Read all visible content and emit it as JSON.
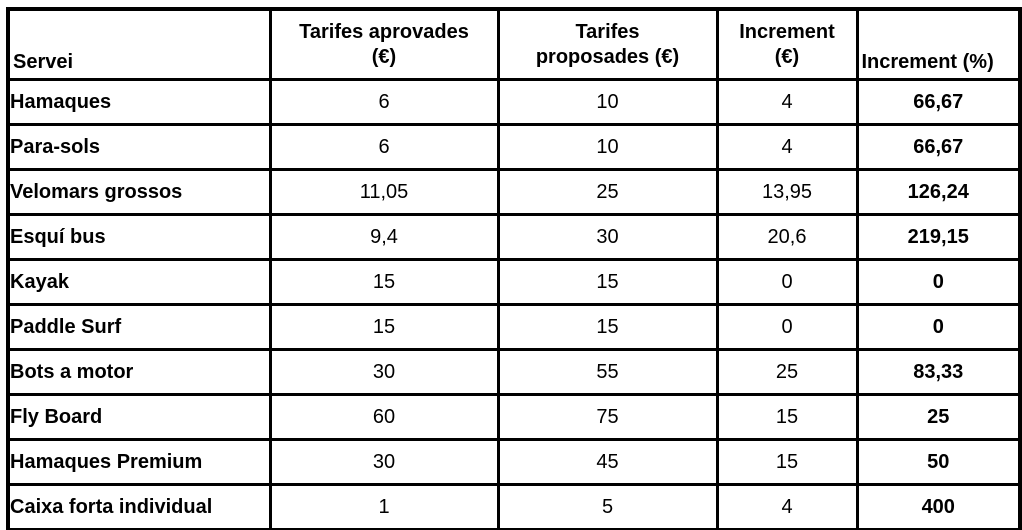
{
  "colors": {
    "value_blue": "#2626cf",
    "pct_red": "#e8141a",
    "border_black": "#000000",
    "background": "#ffffff"
  },
  "table": {
    "header": [
      {
        "line1": "Servei"
      },
      {
        "line1": "Tarifes aprovades",
        "line2": "(€)"
      },
      {
        "line1": "Tarifes",
        "line2": "proposades (€)"
      },
      {
        "line1": "Increment",
        "line2": "(€)"
      },
      {
        "line1": "Increment (%)"
      }
    ],
    "rows": [
      {
        "servei": "Hamaques",
        "aprovades": "6",
        "proposades": "10",
        "increment_eur": "4",
        "increment_pct": "66,67",
        "pct_highlight": true
      },
      {
        "servei": "Para-sols",
        "aprovades": "6",
        "proposades": "10",
        "increment_eur": "4",
        "increment_pct": "66,67",
        "pct_highlight": true
      },
      {
        "servei": "Velomars grossos",
        "aprovades": "11,05",
        "proposades": "25",
        "increment_eur": "13,95",
        "increment_pct": "126,24",
        "pct_highlight": true
      },
      {
        "servei": "Esquí bus",
        "aprovades": "9,4",
        "proposades": "30",
        "increment_eur": "20,6",
        "increment_pct": "219,15",
        "pct_highlight": true
      },
      {
        "servei": "Kayak",
        "aprovades": "15",
        "proposades": "15",
        "increment_eur": "0",
        "increment_pct": "0",
        "pct_highlight": false
      },
      {
        "servei": "Paddle Surf",
        "aprovades": "15",
        "proposades": "15",
        "increment_eur": "0",
        "increment_pct": "0",
        "pct_highlight": false
      },
      {
        "servei": "Bots a motor",
        "aprovades": "30",
        "proposades": "55",
        "increment_eur": "25",
        "increment_pct": "83,33",
        "pct_highlight": true
      },
      {
        "servei": "Fly Board",
        "aprovades": "60",
        "proposades": "75",
        "increment_eur": "15",
        "increment_pct": "25",
        "pct_highlight": true
      },
      {
        "servei": "Hamaques Premium",
        "aprovades": "30",
        "proposades": "45",
        "increment_eur": "15",
        "increment_pct": "50",
        "pct_highlight": true
      },
      {
        "servei": "Caixa forta individual",
        "aprovades": "1",
        "proposades": "5",
        "increment_eur": "4",
        "increment_pct": "400",
        "pct_highlight": true
      }
    ]
  }
}
